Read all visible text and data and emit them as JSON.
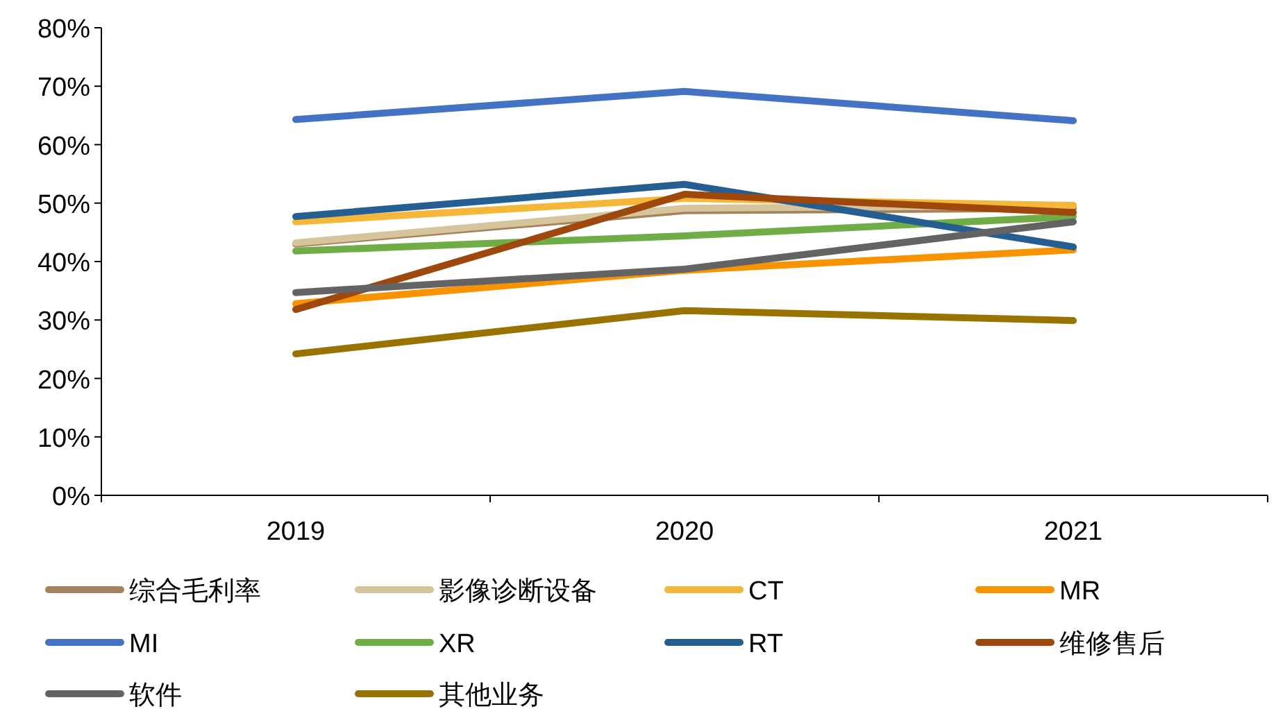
{
  "chart_data": {
    "type": "line",
    "categories": [
      "2019",
      "2020",
      "2021"
    ],
    "ylim": [
      0,
      80
    ],
    "yticks": [
      {
        "value": 0,
        "label": "0%"
      },
      {
        "value": 10,
        "label": "10%"
      },
      {
        "value": 20,
        "label": "20%"
      },
      {
        "value": 30,
        "label": "30%"
      },
      {
        "value": 40,
        "label": "40%"
      },
      {
        "value": 50,
        "label": "50%"
      },
      {
        "value": 60,
        "label": "60%"
      },
      {
        "value": 70,
        "label": "70%"
      },
      {
        "value": 80,
        "label": "80%"
      }
    ],
    "legend": "bottom",
    "series": [
      {
        "name": "综合毛利率",
        "color": "#a5825b",
        "values": [
          43.0,
          48.7,
          49.1
        ]
      },
      {
        "name": "影像诊断设备",
        "color": "#d6c49c",
        "values": [
          43.2,
          49.1,
          49.6
        ]
      },
      {
        "name": "CT",
        "color": "#f4b73a",
        "values": [
          46.8,
          50.8,
          49.6
        ]
      },
      {
        "name": "MR",
        "color": "#f79200",
        "values": [
          32.8,
          38.5,
          42.0
        ]
      },
      {
        "name": "MI",
        "color": "#4472c4",
        "values": [
          64.3,
          69.1,
          64.1
        ]
      },
      {
        "name": "XR",
        "color": "#70ad47",
        "values": [
          41.8,
          44.4,
          47.7
        ]
      },
      {
        "name": "RT",
        "color": "#255e91",
        "values": [
          47.7,
          53.2,
          42.5
        ]
      },
      {
        "name": "维修售后",
        "color": "#9e480e",
        "values": [
          31.8,
          51.5,
          48.4
        ]
      },
      {
        "name": "软件",
        "color": "#636363",
        "values": [
          34.7,
          38.7,
          46.8
        ]
      },
      {
        "name": "其他业务",
        "color": "#997300",
        "values": [
          24.2,
          31.6,
          29.9
        ]
      }
    ]
  }
}
